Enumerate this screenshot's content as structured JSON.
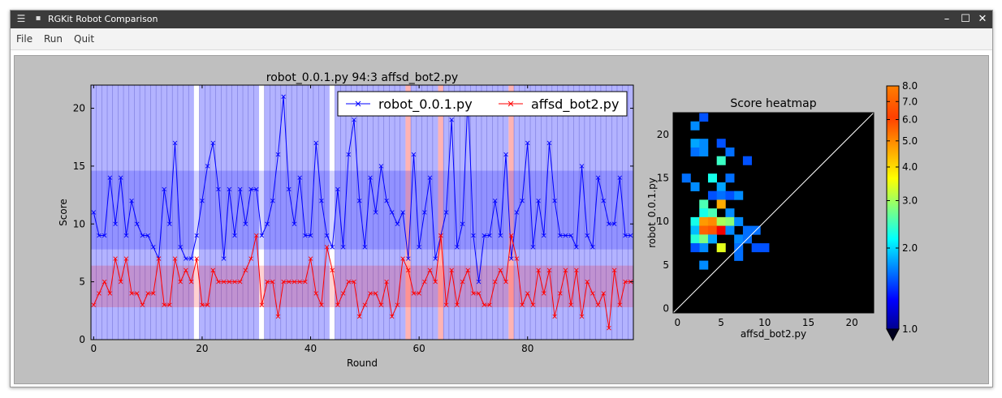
{
  "window": {
    "title": "RGKit Robot Comparison",
    "menu_icon": "hamburger-icon",
    "controls": {
      "minimize": "–",
      "maximize": "☐",
      "close": "✕"
    }
  },
  "menubar": {
    "items": [
      "File",
      "Run",
      "Quit"
    ]
  },
  "line_plot": {
    "title": "robot_0.0.1.py 94:3 affsd_bot2.py",
    "xlabel": "Round",
    "ylabel": "Score",
    "legend": [
      "robot_0.0.1.py",
      "affsd_bot2.py"
    ],
    "xticks": [
      "0",
      "20",
      "40",
      "60",
      "80"
    ],
    "yticks": [
      "0",
      "5",
      "10",
      "15",
      "20"
    ]
  },
  "heatmap": {
    "title": "Score heatmap",
    "xlabel": "affsd_bot2.py",
    "ylabel": "robot_0.0.1.py",
    "xticks": [
      "0",
      "5",
      "10",
      "15",
      "20"
    ],
    "yticks": [
      "0",
      "5",
      "10",
      "15",
      "20"
    ]
  },
  "colorbar": {
    "ticks": [
      "1.0",
      "2.0",
      "3.0",
      "4.0",
      "5.0",
      "6.0",
      "7.0",
      "8.0"
    ]
  },
  "chart_data": [
    {
      "type": "line",
      "title": "robot_0.0.1.py 94:3 affsd_bot2.py",
      "xlabel": "Round",
      "ylabel": "Score",
      "xlim": [
        0,
        99
      ],
      "ylim": [
        0,
        22
      ],
      "grid": false,
      "legend_position": "top-right",
      "x_start": 0,
      "series": [
        {
          "name": "robot_0.0.1.py",
          "color": "#0000ff",
          "values": [
            11,
            9,
            9,
            14,
            10,
            14,
            9,
            12,
            10,
            9,
            9,
            8,
            7,
            13,
            10,
            17,
            8,
            7,
            7,
            9,
            12,
            15,
            17,
            13,
            7,
            13,
            9,
            13,
            10,
            13,
            13,
            9,
            10,
            12,
            16,
            21,
            13,
            10,
            14,
            9,
            9,
            17,
            12,
            9,
            8,
            13,
            8,
            16,
            19,
            12,
            8,
            14,
            11,
            15,
            12,
            11,
            10,
            11,
            7,
            16,
            8,
            11,
            14,
            7,
            9,
            11,
            19,
            8,
            10,
            21,
            9,
            5,
            9,
            9,
            12,
            9,
            16,
            7,
            11,
            12,
            17,
            8,
            12,
            9,
            17,
            12,
            9,
            9,
            9,
            8,
            15,
            9,
            8,
            14,
            12,
            10,
            10,
            14,
            9,
            9
          ]
        },
        {
          "name": "affsd_bot2.py",
          "color": "#ff0000",
          "values": [
            3,
            4,
            5,
            4,
            7,
            5,
            7,
            4,
            4,
            3,
            4,
            4,
            7,
            3,
            3,
            7,
            5,
            6,
            5,
            7,
            3,
            3,
            6,
            5,
            5,
            5,
            5,
            5,
            6,
            7,
            9,
            3,
            5,
            5,
            2,
            5,
            5,
            5,
            5,
            5,
            7,
            4,
            3,
            8,
            6,
            3,
            4,
            5,
            5,
            2,
            3,
            4,
            4,
            3,
            5,
            2,
            3,
            7,
            6,
            4,
            4,
            5,
            6,
            5,
            9,
            3,
            6,
            3,
            5,
            6,
            4,
            4,
            3,
            3,
            5,
            6,
            5,
            9,
            7,
            3,
            4,
            3,
            6,
            4,
            6,
            2,
            4,
            6,
            3,
            6,
            2,
            5,
            4,
            3,
            4,
            1,
            6,
            3,
            5,
            5
          ]
        }
      ],
      "bands": [
        {
          "series": "robot_0.0.1.py",
          "ymin": 7.8,
          "ymax": 14.6,
          "color": "#0000ff"
        },
        {
          "series": "affsd_bot2.py",
          "ymin": 2.8,
          "ymax": 6.4,
          "color": "#ff0000"
        }
      ],
      "round_winner_highlight": {
        "blue_rounds": "all except 19, 31, 44, 58, 64, 77",
        "white_rounds": [
          19,
          31,
          44
        ],
        "red_rounds": [
          58,
          64,
          77
        ]
      }
    },
    {
      "type": "heatmap",
      "title": "Score heatmap",
      "xlabel": "affsd_bot2.py",
      "ylabel": "robot_0.0.1.py",
      "xlim": [
        0,
        22
      ],
      "ylim": [
        0,
        22
      ],
      "colorscale": "jet",
      "background": "#000000",
      "diagonal_line": true,
      "cells": [
        [
          2,
          21,
          1.5
        ],
        [
          3,
          22,
          1.3
        ],
        [
          2,
          19,
          1.6
        ],
        [
          3,
          19,
          1.5
        ],
        [
          2,
          18,
          1.4
        ],
        [
          3,
          18,
          1.5
        ],
        [
          5,
          19,
          1.3
        ],
        [
          6,
          18,
          1.4
        ],
        [
          5,
          17,
          2.3
        ],
        [
          8,
          17,
          1.3
        ],
        [
          1,
          15,
          1.4
        ],
        [
          4,
          15,
          2.1
        ],
        [
          6,
          15,
          1.4
        ],
        [
          2,
          14,
          1.5
        ],
        [
          5,
          14,
          1.6
        ],
        [
          4,
          13,
          1.3
        ],
        [
          5,
          13,
          1.4
        ],
        [
          6,
          13,
          1.3
        ],
        [
          7,
          13,
          1.5
        ],
        [
          3,
          12,
          2.4
        ],
        [
          5,
          12,
          4.6
        ],
        [
          3,
          11,
          2.1
        ],
        [
          4,
          11,
          2.4
        ],
        [
          6,
          11,
          1.5
        ],
        [
          2,
          10,
          2.1
        ],
        [
          3,
          10,
          4.8
        ],
        [
          4,
          10,
          5.0
        ],
        [
          5,
          10,
          3.0
        ],
        [
          6,
          10,
          2.8
        ],
        [
          7,
          10,
          1.5
        ],
        [
          2,
          9,
          1.7
        ],
        [
          3,
          9,
          5.5
        ],
        [
          4,
          9,
          5.7
        ],
        [
          5,
          9,
          7.2
        ],
        [
          6,
          9,
          1.5
        ],
        [
          8,
          9,
          1.4
        ],
        [
          9,
          9,
          1.4
        ],
        [
          2,
          8,
          2.2
        ],
        [
          3,
          8,
          2.7
        ],
        [
          4,
          8,
          1.6
        ],
        [
          7,
          8,
          1.5
        ],
        [
          8,
          8,
          1.4
        ],
        [
          3,
          7,
          1.5
        ],
        [
          5,
          7,
          3.5
        ],
        [
          7,
          7,
          1.4
        ],
        [
          9,
          7,
          1.3
        ],
        [
          10,
          7,
          1.3
        ],
        [
          2,
          7,
          1.3
        ],
        [
          7,
          6,
          1.4
        ],
        [
          3,
          5,
          1.5
        ]
      ]
    },
    {
      "type": "colorbar",
      "scale": "log",
      "range": [
        1.0,
        8.0
      ],
      "colorscale": "jet",
      "extend": "min",
      "ticks": [
        1.0,
        2.0,
        3.0,
        4.0,
        5.0,
        6.0,
        7.0,
        8.0
      ]
    }
  ]
}
